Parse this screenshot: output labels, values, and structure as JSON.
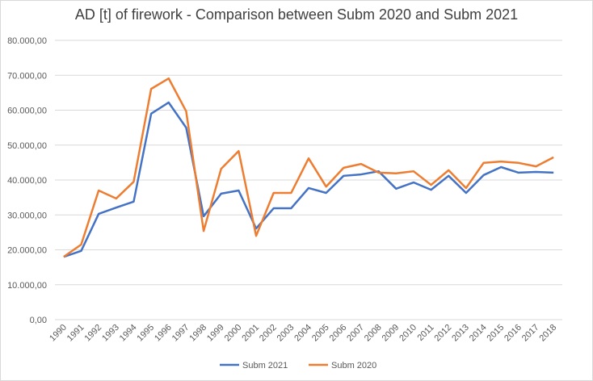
{
  "chart_data": {
    "type": "line",
    "title": "AD [t] of firework - Comparison between Subm 2020 and Subm 2021",
    "categories": [
      "1990",
      "1991",
      "1992",
      "1993",
      "1994",
      "1995",
      "1996",
      "1997",
      "1998",
      "1999",
      "2000",
      "2001",
      "2002",
      "2003",
      "2004",
      "2005",
      "2006",
      "2007",
      "2008",
      "2009",
      "2010",
      "2011",
      "2012",
      "2013",
      "2014",
      "2015",
      "2016",
      "2017",
      "2018"
    ],
    "series": [
      {
        "name": "Subm 2021",
        "color": "#4472c4",
        "values": [
          18000,
          19700,
          30300,
          32100,
          33800,
          59000,
          62200,
          55000,
          29600,
          36100,
          37000,
          26100,
          31900,
          31900,
          37700,
          36300,
          41200,
          41600,
          42500,
          37500,
          39300,
          37200,
          41200,
          36300,
          41400,
          43700,
          42100,
          42300,
          42100
        ]
      },
      {
        "name": "Subm 2020",
        "color": "#ed7d31",
        "values": [
          18000,
          21500,
          37000,
          34700,
          39500,
          66100,
          69100,
          59700,
          25400,
          43200,
          48300,
          24000,
          36300,
          36300,
          46200,
          38100,
          43500,
          44600,
          42100,
          41900,
          42500,
          38600,
          42800,
          37700,
          44900,
          45300,
          44900,
          43900,
          46500
        ]
      }
    ],
    "ylim": [
      0,
      80000
    ],
    "yticks": [
      {
        "value": 0,
        "label": "0,00"
      },
      {
        "value": 10000,
        "label": "10.000,00"
      },
      {
        "value": 20000,
        "label": "20.000,00"
      },
      {
        "value": 30000,
        "label": "30.000,00"
      },
      {
        "value": 40000,
        "label": "40.000,00"
      },
      {
        "value": 50000,
        "label": "50.000,00"
      },
      {
        "value": 60000,
        "label": "60.000,00"
      },
      {
        "value": 70000,
        "label": "70.000,00"
      },
      {
        "value": 80000,
        "label": "80.000,00"
      }
    ],
    "grid": true,
    "legend": "bottom"
  }
}
